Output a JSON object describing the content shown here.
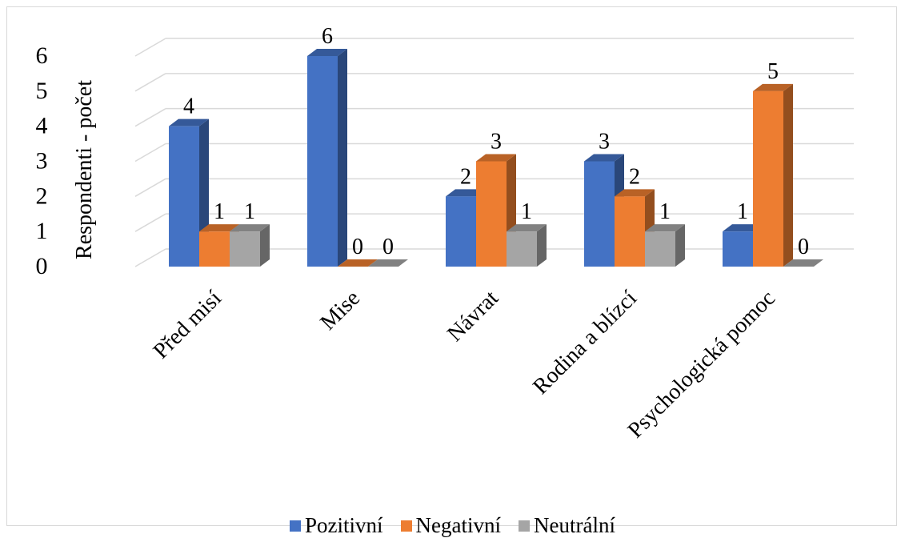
{
  "chart_data": {
    "type": "bar",
    "title": "",
    "xlabel": "",
    "ylabel": "Respondenti - počet",
    "ylim": [
      0,
      6
    ],
    "yticks": [
      0,
      1,
      2,
      3,
      4,
      5,
      6
    ],
    "categories": [
      "Před misí",
      "Mise",
      "Návrat",
      "Rodina a blízcí",
      "Psychologická pomoc"
    ],
    "series": [
      {
        "name": "Pozitivní",
        "color": "#4472c4",
        "values": [
          4,
          6,
          2,
          3,
          1
        ]
      },
      {
        "name": "Negativní",
        "color": "#ed7d31",
        "values": [
          1,
          0,
          3,
          2,
          5
        ]
      },
      {
        "name": "Neutrální",
        "color": "#a5a5a5",
        "values": [
          1,
          0,
          1,
          1,
          0
        ]
      }
    ],
    "data_labels": true,
    "gridlines": true,
    "style": "3d-column",
    "legend_position": "bottom"
  }
}
